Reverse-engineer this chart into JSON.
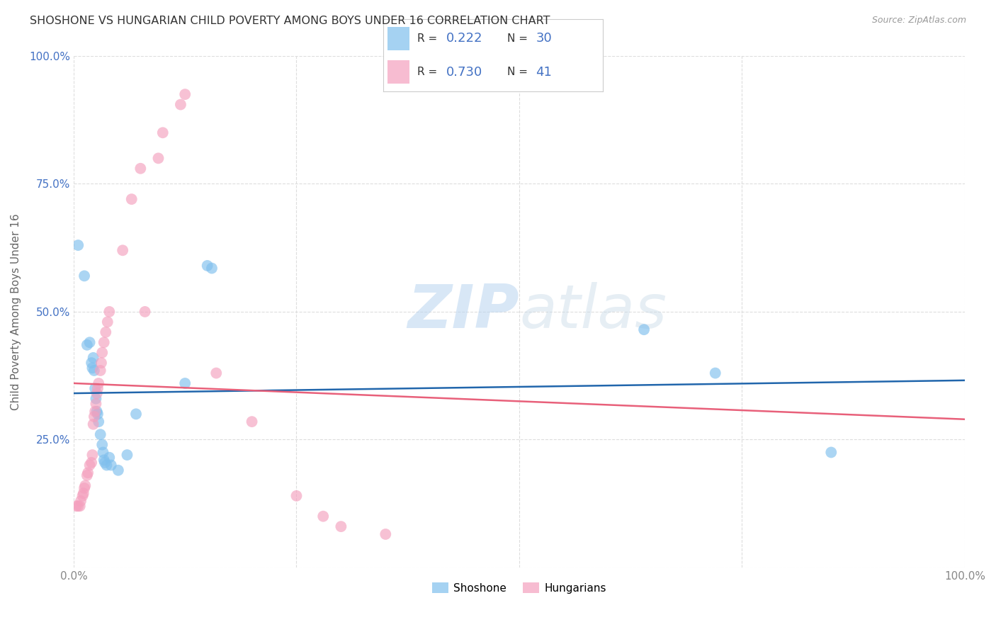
{
  "title": "SHOSHONE VS HUNGARIAN CHILD POVERTY AMONG BOYS UNDER 16 CORRELATION CHART",
  "source": "Source: ZipAtlas.com",
  "ylabel": "Child Poverty Among Boys Under 16",
  "watermark": "ZIPatlas",
  "shoshone_R": 0.222,
  "shoshone_N": 30,
  "hungarian_R": 0.73,
  "hungarian_N": 41,
  "shoshone_color": "#7fbfed",
  "hungarian_color": "#f4a0be",
  "shoshone_line_color": "#2166ac",
  "hungarian_line_color": "#e8607a",
  "shoshone_points": [
    [
      0.5,
      63.0
    ],
    [
      1.2,
      57.0
    ],
    [
      1.5,
      43.5
    ],
    [
      1.8,
      44.0
    ],
    [
      2.0,
      40.0
    ],
    [
      2.1,
      39.0
    ],
    [
      2.2,
      41.0
    ],
    [
      2.3,
      38.5
    ],
    [
      2.4,
      35.0
    ],
    [
      2.5,
      33.0
    ],
    [
      2.6,
      30.5
    ],
    [
      2.7,
      30.0
    ],
    [
      2.8,
      28.5
    ],
    [
      3.0,
      26.0
    ],
    [
      3.2,
      24.0
    ],
    [
      3.3,
      22.5
    ],
    [
      3.4,
      21.0
    ],
    [
      3.5,
      20.5
    ],
    [
      3.7,
      20.0
    ],
    [
      4.0,
      21.5
    ],
    [
      4.2,
      20.0
    ],
    [
      5.0,
      19.0
    ],
    [
      6.0,
      22.0
    ],
    [
      7.0,
      30.0
    ],
    [
      12.5,
      36.0
    ],
    [
      15.0,
      59.0
    ],
    [
      15.5,
      58.5
    ],
    [
      64.0,
      46.5
    ],
    [
      72.0,
      38.0
    ],
    [
      85.0,
      22.5
    ]
  ],
  "hungarian_points": [
    [
      0.3,
      12.0
    ],
    [
      0.5,
      12.0
    ],
    [
      0.7,
      12.0
    ],
    [
      0.8,
      13.0
    ],
    [
      1.0,
      14.0
    ],
    [
      1.1,
      14.5
    ],
    [
      1.2,
      15.5
    ],
    [
      1.3,
      16.0
    ],
    [
      1.5,
      18.0
    ],
    [
      1.6,
      18.5
    ],
    [
      1.8,
      20.0
    ],
    [
      2.0,
      20.5
    ],
    [
      2.1,
      22.0
    ],
    [
      2.2,
      28.0
    ],
    [
      2.3,
      29.5
    ],
    [
      2.4,
      30.5
    ],
    [
      2.5,
      32.0
    ],
    [
      2.6,
      34.0
    ],
    [
      2.7,
      35.0
    ],
    [
      2.8,
      36.0
    ],
    [
      3.0,
      38.5
    ],
    [
      3.1,
      40.0
    ],
    [
      3.2,
      42.0
    ],
    [
      3.4,
      44.0
    ],
    [
      3.6,
      46.0
    ],
    [
      3.8,
      48.0
    ],
    [
      4.0,
      50.0
    ],
    [
      5.5,
      62.0
    ],
    [
      6.5,
      72.0
    ],
    [
      7.5,
      78.0
    ],
    [
      9.5,
      80.0
    ],
    [
      10.0,
      85.0
    ],
    [
      12.0,
      90.5
    ],
    [
      12.5,
      92.5
    ],
    [
      8.0,
      50.0
    ],
    [
      16.0,
      38.0
    ],
    [
      20.0,
      28.5
    ],
    [
      25.0,
      14.0
    ],
    [
      28.0,
      10.0
    ],
    [
      30.0,
      8.0
    ],
    [
      35.0,
      6.5
    ]
  ],
  "xlim": [
    0.0,
    100.0
  ],
  "ylim": [
    0.0,
    100.0
  ],
  "xticks": [
    0.0,
    25.0,
    50.0,
    75.0,
    100.0
  ],
  "xtick_labels": [
    "0.0%",
    "",
    "",
    "",
    "100.0%"
  ],
  "ytick_labels": [
    "",
    "25.0%",
    "50.0%",
    "75.0%",
    "100.0%"
  ],
  "background_color": "#ffffff",
  "grid_color": "#dddddd",
  "legend_R_N_color": "#4472c4",
  "title_color": "#333333",
  "source_color": "#999999",
  "ylabel_color": "#666666",
  "tick_color": "#4472c4"
}
